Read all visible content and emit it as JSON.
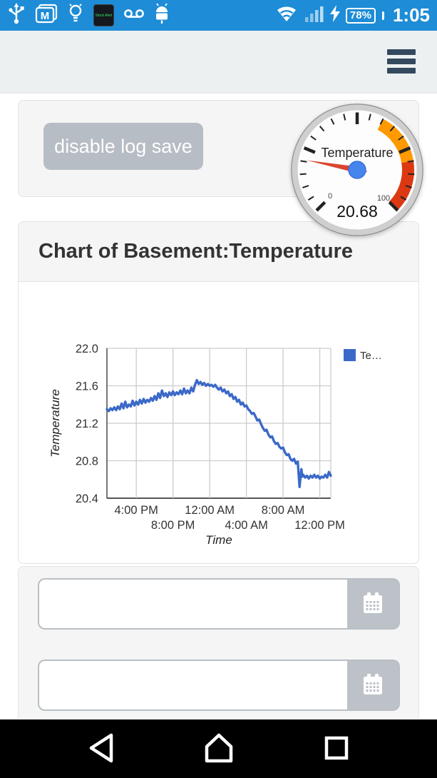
{
  "colors": {
    "status_bar_bg": "#1E8CD6",
    "header_bg": "#ECF0F1",
    "hamburger": "#34495E",
    "card_bg": "#F5F5F5",
    "button_bg": "#B7BDC5",
    "line": "#3B69C8",
    "gauge_orange": "#FF9900",
    "gauge_red": "#DC3912",
    "needle": "#DC4430",
    "hub": "#4684EE"
  },
  "status_bar": {
    "time": "1:05",
    "battery_percent": "78%",
    "stock_alert_text": "Stock Alert",
    "left_icons": [
      "usb-icon",
      "gmail-icon",
      "lightbulb-icon",
      "stock-alert-icon",
      "voicemail-icon",
      "android-icon"
    ],
    "right_icons": [
      "wifi-icon",
      "signal-icon",
      "charging-icon",
      "battery-icon"
    ]
  },
  "toolbar": {
    "disable_log_label": "disable log save"
  },
  "gauge": {
    "title": "Temperature",
    "value": 20.68,
    "value_display": "20.68",
    "min": 0,
    "max": 100,
    "min_label": "0",
    "max_label": "100",
    "orange_from": 60,
    "orange_to": 80,
    "red_from": 80,
    "red_to": 100,
    "major_ticks": [
      0,
      25,
      50,
      75,
      100
    ],
    "minor_per_major": 4
  },
  "chart_panel": {
    "title": "Chart of Basement:Temperature"
  },
  "chart_data": {
    "type": "line",
    "title": "",
    "xlabel": "Time",
    "ylabel": "Temperature",
    "series_name": "Temperature",
    "legend_label": "Te…",
    "legend_position": "right",
    "line_color": "#3B69C8",
    "grid": true,
    "ylim": [
      20.4,
      22.0
    ],
    "yticks": [
      "20.4",
      "20.8",
      "21.2",
      "21.6",
      "22.0"
    ],
    "x_range_hours": [
      0,
      24.4
    ],
    "x_start_clock": "12:50 PM",
    "xticks": [
      {
        "t": 3.2,
        "label": "4:00 PM",
        "row": 1
      },
      {
        "t": 7.2,
        "label": "8:00 PM",
        "row": 2
      },
      {
        "t": 11.2,
        "label": "12:00 AM",
        "row": 1
      },
      {
        "t": 15.2,
        "label": "4:00 AM",
        "row": 2
      },
      {
        "t": 19.2,
        "label": "8:00 AM",
        "row": 1
      },
      {
        "t": 23.2,
        "label": "12:00 PM",
        "row": 2
      }
    ],
    "points": [
      [
        0.0,
        21.35
      ],
      [
        0.2,
        21.33
      ],
      [
        0.4,
        21.36
      ],
      [
        0.6,
        21.34
      ],
      [
        0.8,
        21.37
      ],
      [
        1.0,
        21.34
      ],
      [
        1.2,
        21.38
      ],
      [
        1.4,
        21.35
      ],
      [
        1.6,
        21.41
      ],
      [
        1.8,
        21.36
      ],
      [
        2.0,
        21.43
      ],
      [
        2.2,
        21.37
      ],
      [
        2.4,
        21.4
      ],
      [
        2.6,
        21.38
      ],
      [
        2.8,
        21.44
      ],
      [
        3.0,
        21.39
      ],
      [
        3.2,
        21.43
      ],
      [
        3.4,
        21.4
      ],
      [
        3.6,
        21.45
      ],
      [
        3.8,
        21.41
      ],
      [
        4.0,
        21.46
      ],
      [
        4.2,
        21.42
      ],
      [
        4.4,
        21.45
      ],
      [
        4.6,
        21.43
      ],
      [
        4.8,
        21.47
      ],
      [
        5.0,
        21.44
      ],
      [
        5.2,
        21.49
      ],
      [
        5.4,
        21.45
      ],
      [
        5.6,
        21.52
      ],
      [
        5.8,
        21.47
      ],
      [
        6.0,
        21.55
      ],
      [
        6.2,
        21.49
      ],
      [
        6.4,
        21.52
      ],
      [
        6.6,
        21.48
      ],
      [
        6.8,
        21.53
      ],
      [
        7.0,
        21.5
      ],
      [
        7.2,
        21.54
      ],
      [
        7.4,
        21.5
      ],
      [
        7.6,
        21.53
      ],
      [
        7.8,
        21.51
      ],
      [
        8.0,
        21.55
      ],
      [
        8.2,
        21.51
      ],
      [
        8.4,
        21.57
      ],
      [
        8.6,
        21.52
      ],
      [
        8.8,
        21.55
      ],
      [
        9.0,
        21.52
      ],
      [
        9.2,
        21.58
      ],
      [
        9.4,
        21.54
      ],
      [
        9.6,
        21.61
      ],
      [
        9.8,
        21.66
      ],
      [
        10.0,
        21.62
      ],
      [
        10.2,
        21.64
      ],
      [
        10.4,
        21.61
      ],
      [
        10.6,
        21.63
      ],
      [
        10.8,
        21.6
      ],
      [
        11.0,
        21.62
      ],
      [
        11.2,
        21.6
      ],
      [
        11.4,
        21.61
      ],
      [
        11.6,
        21.59
      ],
      [
        11.8,
        21.61
      ],
      [
        12.0,
        21.58
      ],
      [
        12.2,
        21.56
      ],
      [
        12.4,
        21.58
      ],
      [
        12.6,
        21.54
      ],
      [
        12.8,
        21.56
      ],
      [
        13.0,
        21.52
      ],
      [
        13.2,
        21.54
      ],
      [
        13.4,
        21.49
      ],
      [
        13.6,
        21.51
      ],
      [
        13.8,
        21.46
      ],
      [
        14.0,
        21.48
      ],
      [
        14.2,
        21.43
      ],
      [
        14.4,
        21.45
      ],
      [
        14.6,
        21.4
      ],
      [
        14.8,
        21.42
      ],
      [
        15.0,
        21.38
      ],
      [
        15.2,
        21.39
      ],
      [
        15.4,
        21.35
      ],
      [
        15.6,
        21.33
      ],
      [
        15.8,
        21.3
      ],
      [
        16.0,
        21.31
      ],
      [
        16.2,
        21.27
      ],
      [
        16.4,
        21.23
      ],
      [
        16.6,
        21.24
      ],
      [
        16.8,
        21.19
      ],
      [
        17.0,
        21.15
      ],
      [
        17.2,
        21.12
      ],
      [
        17.4,
        21.13
      ],
      [
        17.6,
        21.08
      ],
      [
        17.8,
        21.05
      ],
      [
        18.0,
        21.06
      ],
      [
        18.2,
        21.01
      ],
      [
        18.4,
        20.98
      ],
      [
        18.6,
        20.99
      ],
      [
        18.8,
        20.95
      ],
      [
        19.0,
        20.93
      ],
      [
        19.2,
        20.94
      ],
      [
        19.4,
        20.89
      ],
      [
        19.6,
        20.86
      ],
      [
        19.8,
        20.87
      ],
      [
        20.0,
        20.82
      ],
      [
        20.2,
        20.8
      ],
      [
        20.4,
        20.82
      ],
      [
        20.6,
        20.77
      ],
      [
        20.8,
        20.79
      ],
      [
        20.9,
        20.65
      ],
      [
        21.0,
        20.52
      ],
      [
        21.1,
        20.62
      ],
      [
        21.2,
        20.71
      ],
      [
        21.3,
        20.63
      ],
      [
        21.4,
        20.65
      ],
      [
        21.6,
        20.62
      ],
      [
        21.8,
        20.64
      ],
      [
        22.0,
        20.61
      ],
      [
        22.2,
        20.64
      ],
      [
        22.4,
        20.62
      ],
      [
        22.6,
        20.65
      ],
      [
        22.8,
        20.62
      ],
      [
        23.0,
        20.64
      ],
      [
        23.2,
        20.61
      ],
      [
        23.4,
        20.63
      ],
      [
        23.6,
        20.62
      ],
      [
        23.8,
        20.65
      ],
      [
        24.0,
        20.62
      ],
      [
        24.2,
        20.68
      ],
      [
        24.4,
        20.64
      ]
    ]
  },
  "date_range": {
    "inputs": [
      {
        "value": "",
        "icon": "calendar-icon"
      },
      {
        "value": "",
        "icon": "calendar-icon"
      }
    ]
  },
  "nav_bar": {
    "buttons": [
      "back-button",
      "home-button",
      "recents-button"
    ]
  }
}
